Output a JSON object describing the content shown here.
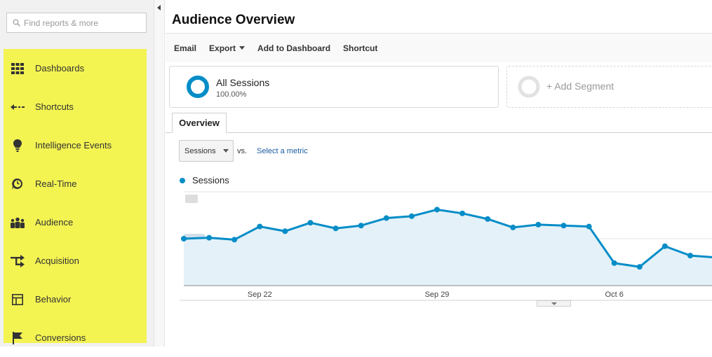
{
  "search": {
    "placeholder": "Find reports & more"
  },
  "sidebar": {
    "highlight_color": "#f3f352",
    "items": [
      {
        "label": "Dashboards",
        "icon": "grid-icon"
      },
      {
        "label": "Shortcuts",
        "icon": "shortcut-arrow-icon"
      },
      {
        "label": "Intelligence Events",
        "icon": "lightbulb-icon"
      },
      {
        "label": "Real-Time",
        "icon": "clock-icon"
      },
      {
        "label": "Audience",
        "icon": "people-icon"
      },
      {
        "label": "Acquisition",
        "icon": "acquisition-arrows-icon"
      },
      {
        "label": "Behavior",
        "icon": "layout-icon"
      },
      {
        "label": "Conversions",
        "icon": "flag-icon"
      }
    ]
  },
  "page": {
    "title": "Audience Overview"
  },
  "toolbar": {
    "email": "Email",
    "export": "Export",
    "add_to_dashboard": "Add to Dashboard",
    "shortcut": "Shortcut"
  },
  "segments": {
    "all_sessions": {
      "label": "All Sessions",
      "percent": "100.00%"
    },
    "add_segment": "+ Add Segment"
  },
  "tabs": {
    "overview": "Overview"
  },
  "metric_picker": {
    "selected": "Sessions",
    "vs": "vs.",
    "select_metric": "Select a metric"
  },
  "chart_data": {
    "type": "area",
    "color": "#058dc7",
    "series": [
      {
        "name": "Sessions",
        "values": [
          50,
          51,
          49,
          63,
          58,
          67,
          61,
          64,
          72,
          74,
          81,
          77,
          71,
          62,
          65,
          64,
          63,
          24,
          20,
          42,
          32,
          30
        ]
      }
    ],
    "x_ticks": [
      "Sep 22",
      "Sep 29",
      "Oct 6"
    ],
    "x_tick_index": [
      3,
      10,
      17
    ],
    "ylim": [
      0,
      100
    ],
    "y_gridlines": [
      50,
      100
    ],
    "y_tick_labels_blurred": true,
    "grid": true
  }
}
